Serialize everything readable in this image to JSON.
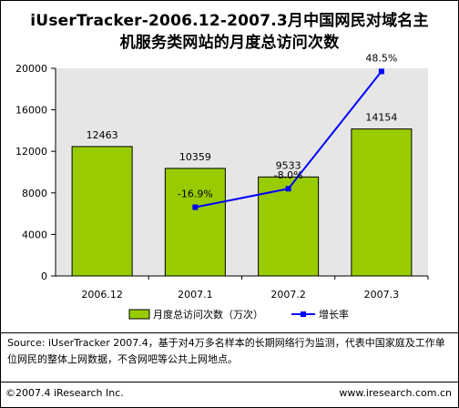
{
  "title_line1": "iUserTracker-2006.12-2007.3月中国网民对域名主",
  "title_line2": "机服务类网站的月度总访问次数",
  "source": "Source: iUserTracker 2007.4，基于对4万多名样本的长期网络行为监测，代表中国家庭及工作单位网民的整体上网数据，不含网吧等公共上网地点。",
  "footer_left": "©2007.4 iResearch Inc.",
  "footer_right": "www.iresearch.com.cn",
  "chart_data": {
    "type": "bar",
    "categories": [
      "2006.12",
      "2007.1",
      "2007.2",
      "2007.3"
    ],
    "series": [
      {
        "name": "月度总访问次数（万次）",
        "type": "bar",
        "values": [
          12463,
          10359,
          9533,
          14154
        ],
        "labels": [
          "12463",
          "10359",
          "9533",
          "14154"
        ],
        "color": "#99cc00"
      },
      {
        "name": "增长率",
        "type": "line",
        "values": [
          null,
          -16.9,
          -8.0,
          48.5
        ],
        "labels": [
          "",
          "-16.9%",
          "-8.0%",
          "48.5%"
        ],
        "color": "#0000ff"
      }
    ],
    "ylim": [
      0,
      20000
    ],
    "yticks": [
      "0",
      "4000",
      "8000",
      "12000",
      "16000",
      "20000"
    ],
    "growth_axis_range": [
      -50,
      50
    ],
    "grid": false,
    "legend": "bottom"
  }
}
